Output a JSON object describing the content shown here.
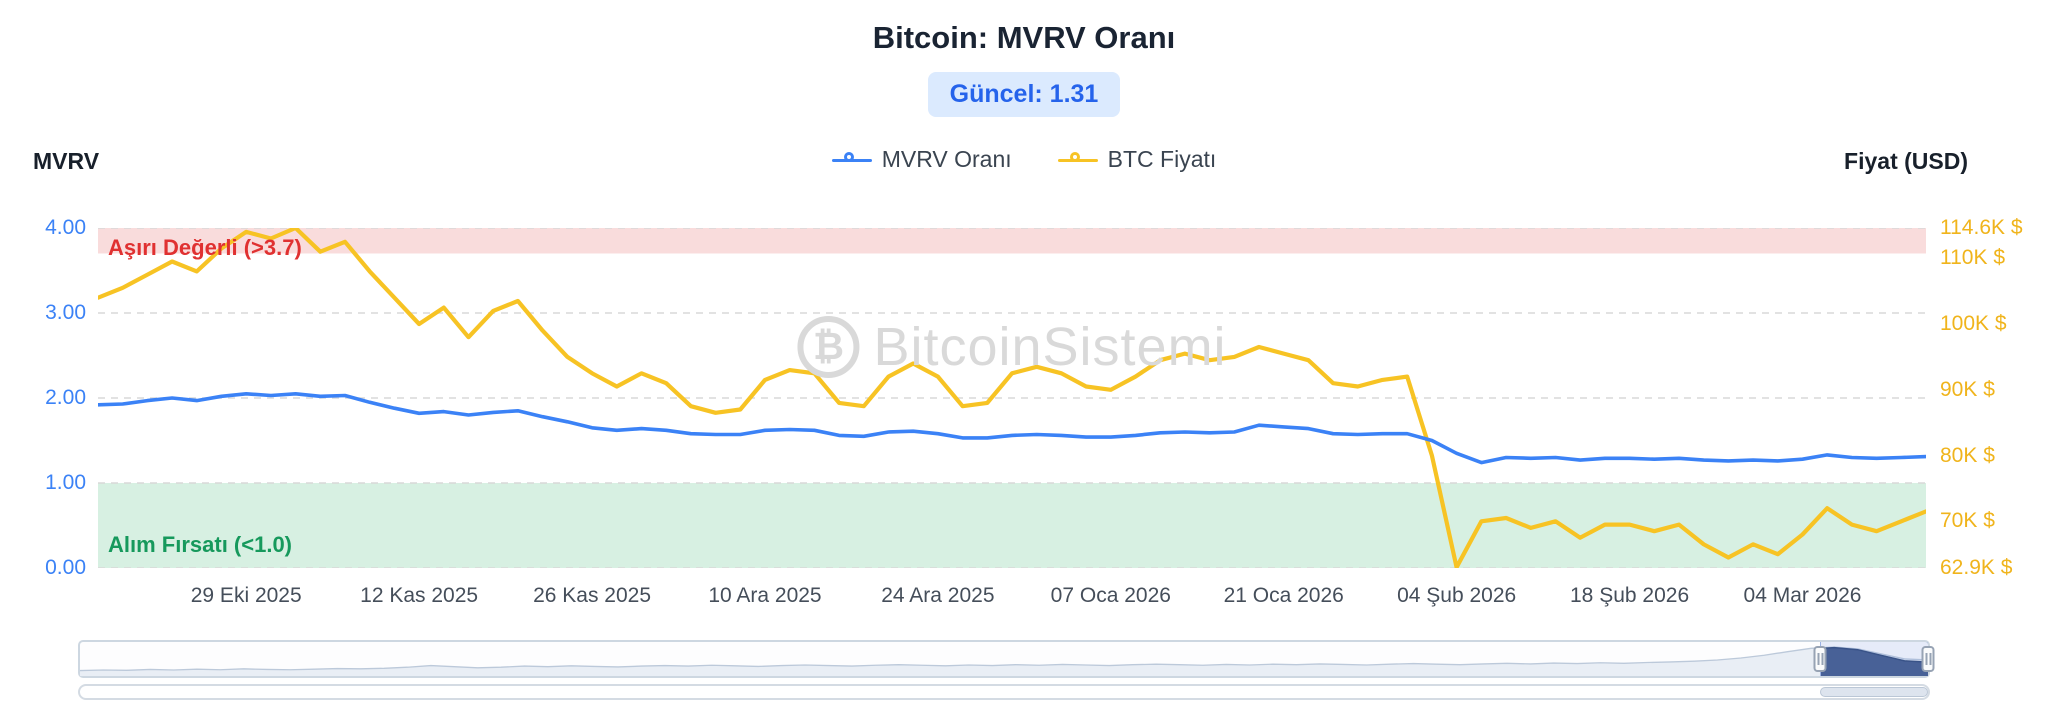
{
  "header": {
    "title": "Bitcoin: MVRV Oranı",
    "badge": "Güncel: 1.31"
  },
  "legend": {
    "items": [
      {
        "label": "MVRV Oranı",
        "color": "#3b82f6"
      },
      {
        "label": "BTC Fiyatı",
        "color": "#f7c324"
      }
    ]
  },
  "watermark": {
    "text": "BitcoinSistemi",
    "logo_glyph": "₿"
  },
  "chart_data": {
    "type": "line",
    "title": "Bitcoin: MVRV Oranı",
    "current_value": 1.31,
    "grid": "dashed-horizontal",
    "legend_position": "top-center",
    "left_axis": {
      "title": "MVRV",
      "range": [
        0,
        4
      ],
      "ticks": [
        4,
        3,
        2,
        1,
        0
      ],
      "tick_labels": [
        "4.00",
        "3.00",
        "2.00",
        "1.00",
        "0.00"
      ],
      "color": "#3b82f6"
    },
    "right_axis": {
      "title": "Fiyat (USD)",
      "range": [
        62.9,
        114.6
      ],
      "ticks": [
        114.6,
        110,
        100,
        90,
        80,
        70,
        62.9
      ],
      "tick_labels": [
        "114.6K $",
        "110K $",
        "100K $",
        "90K $",
        "80K $",
        "70K $",
        "62.9K $"
      ],
      "color": "#f0b41c"
    },
    "x_axis": {
      "span_days": 148,
      "tick_days": [
        12,
        26,
        40,
        54,
        68,
        82,
        96,
        110,
        124,
        138
      ],
      "tick_labels": [
        "29 Eki 2025",
        "12 Kas 2025",
        "26 Kas 2025",
        "10 Ara 2025",
        "24 Ara 2025",
        "07 Oca 2026",
        "21 Oca 2026",
        "04 Şub 2026",
        "18 Şub 2026",
        "04 Mar 2026"
      ]
    },
    "zones": [
      {
        "label": "Aşırı Değerli (>3.7)",
        "from": 3.7,
        "to": 4.0,
        "bg": "#f9dcdc",
        "label_color": "#e03131"
      },
      {
        "label": "Alım Fırsatı (<1.0)",
        "from": 0.0,
        "to": 1.0,
        "bg": "#d7f0e2",
        "label_color": "#16995c"
      }
    ],
    "series": [
      {
        "name": "MVRV Oranı",
        "axis": "left",
        "color": "#3b82f6",
        "values": [
          1.92,
          1.93,
          1.97,
          2.0,
          1.97,
          2.02,
          2.05,
          2.03,
          2.05,
          2.02,
          2.03,
          1.95,
          1.88,
          1.82,
          1.84,
          1.8,
          1.83,
          1.85,
          1.78,
          1.72,
          1.65,
          1.62,
          1.64,
          1.62,
          1.58,
          1.57,
          1.57,
          1.62,
          1.63,
          1.62,
          1.56,
          1.55,
          1.6,
          1.61,
          1.58,
          1.53,
          1.53,
          1.56,
          1.57,
          1.56,
          1.54,
          1.54,
          1.56,
          1.59,
          1.6,
          1.59,
          1.6,
          1.68,
          1.66,
          1.64,
          1.58,
          1.57,
          1.58,
          1.58,
          1.5,
          1.35,
          1.24,
          1.3,
          1.29,
          1.3,
          1.27,
          1.29,
          1.29,
          1.28,
          1.29,
          1.27,
          1.26,
          1.27,
          1.26,
          1.28,
          1.33,
          1.3,
          1.29,
          1.3,
          1.31
        ]
      },
      {
        "name": "BTC Fiyatı",
        "axis": "right",
        "color": "#f7c324",
        "unit": "K$",
        "values": [
          104,
          105.5,
          107.5,
          109.5,
          108,
          111.5,
          114,
          113,
          114.6,
          111,
          112.5,
          108,
          104,
          100,
          102.5,
          98,
          102,
          103.5,
          99,
          95,
          92.5,
          90.5,
          92.5,
          91,
          87.5,
          86.5,
          87,
          91.5,
          93,
          92.5,
          88,
          87.5,
          92,
          94,
          92,
          87.5,
          88,
          92.5,
          93.5,
          92.5,
          90.5,
          90,
          92,
          94.5,
          95.5,
          94.5,
          95,
          96.5,
          95.5,
          94.5,
          91,
          90.5,
          91.5,
          92,
          80,
          63,
          70,
          70.5,
          69,
          70,
          67.5,
          69.5,
          69.5,
          68.5,
          69.5,
          66.5,
          64.5,
          66.5,
          65,
          68,
          72,
          69.5,
          68.5,
          70,
          71.5
        ]
      }
    ],
    "navigator": {
      "selection": [
        0.9417,
        1.0
      ],
      "values": [
        0.1,
        0.12,
        0.11,
        0.14,
        0.12,
        0.15,
        0.13,
        0.16,
        0.14,
        0.13,
        0.15,
        0.17,
        0.16,
        0.18,
        0.22,
        0.28,
        0.24,
        0.2,
        0.22,
        0.26,
        0.24,
        0.27,
        0.25,
        0.23,
        0.26,
        0.28,
        0.26,
        0.29,
        0.27,
        0.25,
        0.28,
        0.3,
        0.28,
        0.26,
        0.29,
        0.31,
        0.29,
        0.27,
        0.3,
        0.28,
        0.31,
        0.29,
        0.32,
        0.3,
        0.28,
        0.31,
        0.33,
        0.31,
        0.29,
        0.32,
        0.3,
        0.33,
        0.31,
        0.34,
        0.32,
        0.3,
        0.33,
        0.35,
        0.33,
        0.31,
        0.34,
        0.36,
        0.34,
        0.37,
        0.35,
        0.38,
        0.36,
        0.39,
        0.41,
        0.44,
        0.48,
        0.55,
        0.65,
        0.78,
        0.9,
        0.95,
        0.88,
        0.7,
        0.52,
        0.48
      ]
    }
  }
}
